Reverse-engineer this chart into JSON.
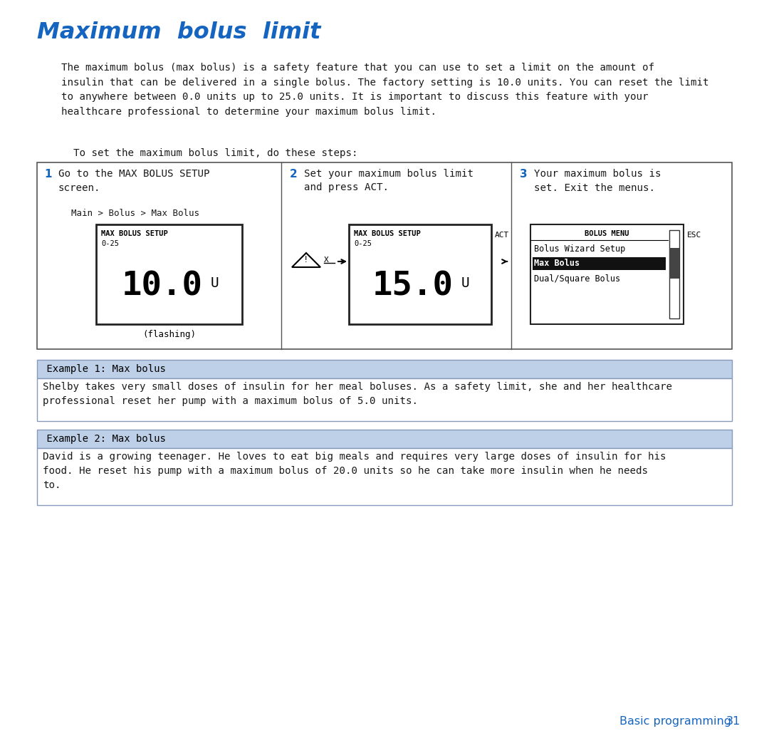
{
  "title": "Maximum  bolus  limit",
  "title_color": "#1565C0",
  "body_color": "#1a1a1a",
  "intro_text": "    The maximum bolus (max bolus) is a safety feature that you can use to set a limit on the amount of\n    insulin that can be delivered in a single bolus. The factory setting is 10.0 units. You can reset the limit\n    to anywhere between 0.0 units up to 25.0 units. It is important to discuss this feature with your\n    healthcare professional to determine your maximum bolus limit.",
  "steps_intro": "      To set the maximum bolus limit, do these steps:",
  "step1_num": "1",
  "step1_text": "Go to the MAX BOLUS SETUP\nscreen.",
  "step1_nav": "Main > Bolus > Max Bolus",
  "step1_screen_title": "MAX BOLUS SETUP",
  "step1_screen_range": "0-25",
  "step1_screen_value": "10.0",
  "step1_screen_unit": "U",
  "step1_flashing": "(flashing)",
  "step2_num": "2",
  "step2_text": "Set your maximum bolus limit\nand press ACT.",
  "step2_screen_title": "MAX BOLUS SETUP",
  "step2_screen_range": "0-25",
  "step2_screen_value": "15.0",
  "step2_screen_unit": "U",
  "step2_act": "ACT",
  "step3_num": "3",
  "step3_text": "Your maximum bolus is\nset. Exit the menus.",
  "step3_menu_title": "BOLUS MENU",
  "step3_menu_item1": "Bolus Wizard Setup",
  "step3_menu_item2": "Max Bolus",
  "step3_menu_item3": "Dual/Square Bolus",
  "step3_esc": "ESC",
  "example1_header": " Example 1: Max bolus",
  "example1_text": "Shelby takes very small doses of insulin for her meal boluses. As a safety limit, she and her healthcare\nprofessional reset her pump with a maximum bolus of 5.0 units.",
  "example2_header": " Example 2: Max bolus",
  "example2_text": "David is a growing teenager. He loves to eat big meals and requires very large doses of insulin for his\nfood. He reset his pump with a maximum bolus of 20.0 units so he can take more insulin when he needs\nto.",
  "footer_text": "Basic programming",
  "footer_page": "31",
  "footer_color": "#1565C0",
  "example_header_bg": "#bdd0e8",
  "example_border_color": "#8899bb",
  "steps_box_border": "#555555",
  "page_bg": "#ffffff"
}
